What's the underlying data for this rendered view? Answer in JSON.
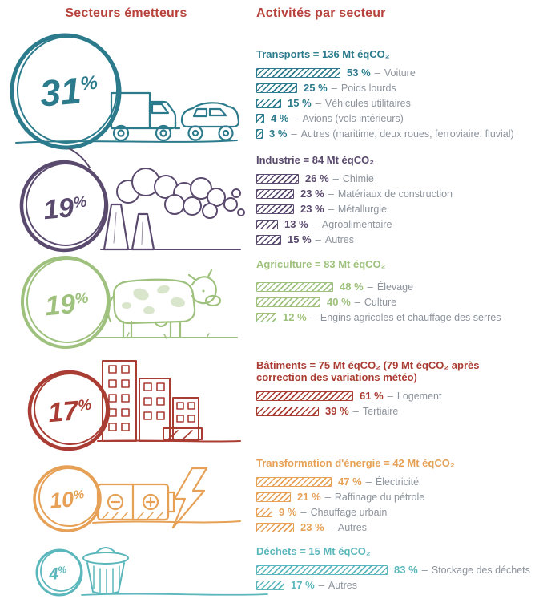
{
  "header": {
    "left_title": "Secteurs émetteurs",
    "right_title": "Activités par secteur"
  },
  "ui": {
    "percent_sign": "%",
    "separator": "–"
  },
  "colors": {
    "header_red": "#b8423c",
    "label_gray": "#8c939c",
    "transports": "#2c7b8c",
    "industrie": "#5a4a6e",
    "agriculture": "#9fc17e",
    "batiments": "#aa3d33",
    "energie": "#e6a156",
    "dechets": "#5bb7bb"
  },
  "chart_data": {
    "type": "bar",
    "title": "Secteurs émetteurs / Activités par secteur",
    "unit": "Mt éqCO₂",
    "sectors": [
      {
        "name": "Transports",
        "share_pct": 31,
        "share_display": "31",
        "title": "Transports = 136 Mt éqCO₂",
        "total_mt": 136,
        "color": "#2c7b8c",
        "icon": "truck-and-car",
        "activities": [
          {
            "pct": 53,
            "pct_label": "53 %",
            "label": "Voiture"
          },
          {
            "pct": 25,
            "pct_label": "25 %",
            "label": "Poids lourds"
          },
          {
            "pct": 15,
            "pct_label": "15 %",
            "label": "Véhicules utilitaires"
          },
          {
            "pct": 4,
            "pct_label": "4 %",
            "label": "Avions (vols intérieurs)"
          },
          {
            "pct": 3,
            "pct_label": "3 %",
            "label": "Autres (maritime, deux roues, ferroviaire, fluvial)"
          }
        ]
      },
      {
        "name": "Industrie",
        "share_pct": 19,
        "share_display": "19",
        "title": "Industrie = 84 Mt éqCO₂",
        "total_mt": 84,
        "color": "#5a4a6e",
        "icon": "factory-smoke",
        "activities": [
          {
            "pct": 26,
            "pct_label": "26 %",
            "label": "Chimie"
          },
          {
            "pct": 23,
            "pct_label": "23 %",
            "label": "Matériaux de construction"
          },
          {
            "pct": 23,
            "pct_label": "23 %",
            "label": "Métallurgie"
          },
          {
            "pct": 13,
            "pct_label": "13 %",
            "label": "Agroalimentaire"
          },
          {
            "pct": 15,
            "pct_label": "15 %",
            "label": "Autres"
          }
        ]
      },
      {
        "name": "Agriculture",
        "share_pct": 19,
        "share_display": "19",
        "title": "Agriculture = 83 Mt éqCO₂",
        "total_mt": 83,
        "color": "#9fc17e",
        "icon": "cow",
        "activities": [
          {
            "pct": 48,
            "pct_label": "48 %",
            "label": "Élevage"
          },
          {
            "pct": 40,
            "pct_label": "40 %",
            "label": "Culture"
          },
          {
            "pct": 12,
            "pct_label": "12 %",
            "label": "Engins agricoles et chauffage des serres"
          }
        ]
      },
      {
        "name": "Bâtiments",
        "share_pct": 17,
        "share_display": "17",
        "title": "Bâtiments = 75 Mt éqCO₂ (79 Mt éqCO₂ après correction des variations météo)",
        "total_mt": 75,
        "color": "#aa3d33",
        "icon": "buildings",
        "activities": [
          {
            "pct": 61,
            "pct_label": "61 %",
            "label": "Logement"
          },
          {
            "pct": 39,
            "pct_label": "39 %",
            "label": "Tertiaire"
          }
        ]
      },
      {
        "name": "Transformation d'énergie",
        "share_pct": 10,
        "share_display": "10",
        "title": "Transformation d'énergie = 42 Mt éqCO₂",
        "total_mt": 42,
        "color": "#e6a156",
        "icon": "battery-lightning",
        "activities": [
          {
            "pct": 47,
            "pct_label": "47 %",
            "label": "Électricité"
          },
          {
            "pct": 21,
            "pct_label": "21 %",
            "label": "Raffinage du pétrole"
          },
          {
            "pct": 9,
            "pct_label": "9 %",
            "label": "Chauffage urbain"
          },
          {
            "pct": 23,
            "pct_label": "23 %",
            "label": "Autres"
          }
        ]
      },
      {
        "name": "Déchets",
        "share_pct": 4,
        "share_display": "4",
        "title": "Déchets = 15 Mt éqCO₂",
        "total_mt": 15,
        "color": "#5bb7bb",
        "icon": "trash-can",
        "activities": [
          {
            "pct": 83,
            "pct_label": "83 %",
            "label": "Stockage des déchets"
          },
          {
            "pct": 17,
            "pct_label": "17 %",
            "label": "Autres"
          }
        ]
      }
    ]
  }
}
